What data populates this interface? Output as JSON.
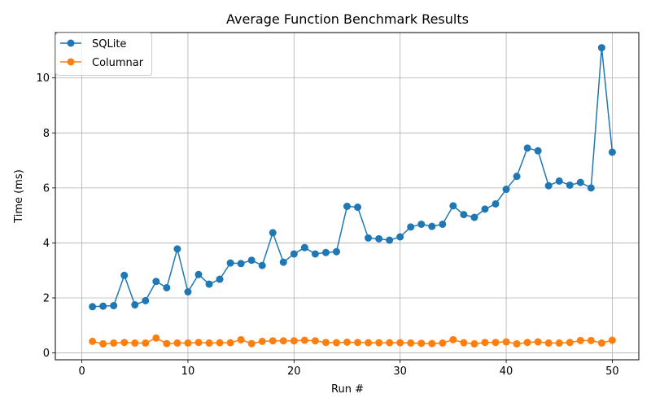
{
  "chart_data": {
    "type": "line",
    "title": "Average Function Benchmark Results",
    "xlabel": "Run #",
    "ylabel": "Time (ms)",
    "xlim": [
      -2.5,
      52.5
    ],
    "ylim": [
      -0.25,
      11.65
    ],
    "xticks": [
      0,
      10,
      20,
      30,
      40,
      50
    ],
    "yticks": [
      0,
      2,
      4,
      6,
      8,
      10
    ],
    "grid": true,
    "legend_position": "top-left",
    "x": [
      1,
      2,
      3,
      4,
      5,
      6,
      7,
      8,
      9,
      10,
      11,
      12,
      13,
      14,
      15,
      16,
      17,
      18,
      19,
      20,
      21,
      22,
      23,
      24,
      25,
      26,
      27,
      28,
      29,
      30,
      31,
      32,
      33,
      34,
      35,
      36,
      37,
      38,
      39,
      40,
      41,
      42,
      43,
      44,
      45,
      46,
      47,
      48,
      49,
      50
    ],
    "series": [
      {
        "name": "SQLite",
        "color": "#1f77b4",
        "values": [
          1.68,
          1.7,
          1.72,
          2.82,
          1.75,
          1.9,
          2.6,
          2.37,
          3.78,
          2.22,
          2.85,
          2.5,
          2.68,
          3.27,
          3.25,
          3.37,
          3.18,
          4.37,
          3.3,
          3.6,
          3.83,
          3.6,
          3.65,
          3.68,
          5.33,
          5.3,
          4.18,
          4.15,
          4.1,
          4.22,
          4.58,
          4.68,
          4.6,
          4.68,
          5.35,
          5.03,
          4.93,
          5.23,
          5.42,
          5.95,
          6.42,
          7.45,
          7.35,
          6.08,
          6.25,
          6.1,
          6.2,
          6.0,
          11.1,
          7.3
        ]
      },
      {
        "name": "Columnar",
        "color": "#ff7f0e",
        "values": [
          0.42,
          0.33,
          0.36,
          0.38,
          0.36,
          0.36,
          0.54,
          0.34,
          0.36,
          0.36,
          0.38,
          0.36,
          0.37,
          0.37,
          0.48,
          0.34,
          0.42,
          0.44,
          0.44,
          0.44,
          0.46,
          0.44,
          0.38,
          0.37,
          0.39,
          0.38,
          0.37,
          0.37,
          0.37,
          0.37,
          0.36,
          0.35,
          0.34,
          0.36,
          0.48,
          0.37,
          0.33,
          0.38,
          0.38,
          0.4,
          0.33,
          0.38,
          0.4,
          0.36,
          0.36,
          0.38,
          0.45,
          0.45,
          0.36,
          0.46
        ]
      }
    ]
  }
}
